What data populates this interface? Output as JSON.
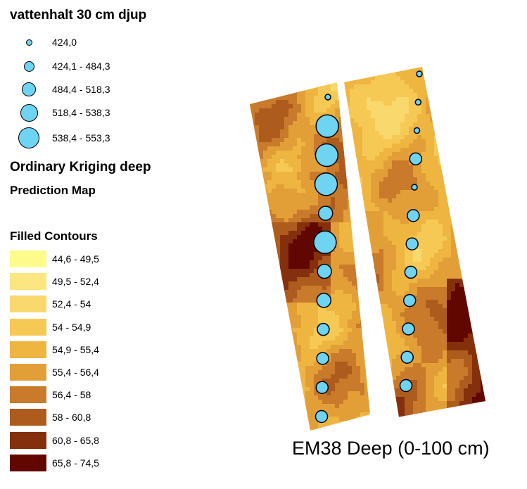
{
  "legend": {
    "points_title": "vattenhalt 30 cm djup",
    "point_classes": [
      {
        "label": "424,0",
        "size": 1
      },
      {
        "label": "424,1 - 484,3",
        "size": 2
      },
      {
        "label": "484,4 - 518,3",
        "size": 3
      },
      {
        "label": "518,4 - 538,3",
        "size": 4
      },
      {
        "label": "538,4 - 553,3",
        "size": 5
      }
    ],
    "point_color": "#6fd3f2",
    "kriging_title": "Ordinary Kriging deep",
    "kriging_subtitle": "Prediction Map",
    "contours_title": "Filled Contours",
    "contour_classes": [
      {
        "label": "44,6 - 49,5",
        "color": "#fdfb8c"
      },
      {
        "label": "49,5 - 52,4",
        "color": "#fbe681"
      },
      {
        "label": "52,4 - 54",
        "color": "#f9d86d"
      },
      {
        "label": "54 - 54,9",
        "color": "#f6c955"
      },
      {
        "label": "54,9 - 55,4",
        "color": "#efb541"
      },
      {
        "label": "55,4 - 56,4",
        "color": "#e39f37"
      },
      {
        "label": "56,4 - 58",
        "color": "#c97a2a"
      },
      {
        "label": "58 - 60,8",
        "color": "#ad5c1d"
      },
      {
        "label": "60,8 - 65,8",
        "color": "#85300d"
      },
      {
        "label": "65,8 - 74,5",
        "color": "#620700"
      }
    ]
  },
  "map": {
    "caption": "EM38 Deep (0-100 cm)",
    "left_strip_points": [
      1,
      5,
      5,
      5,
      3,
      5,
      3,
      3,
      2,
      2,
      2,
      2
    ],
    "right_strip_points": [
      1,
      1,
      1,
      2,
      1,
      2,
      2,
      2,
      2,
      2,
      2,
      2
    ]
  }
}
